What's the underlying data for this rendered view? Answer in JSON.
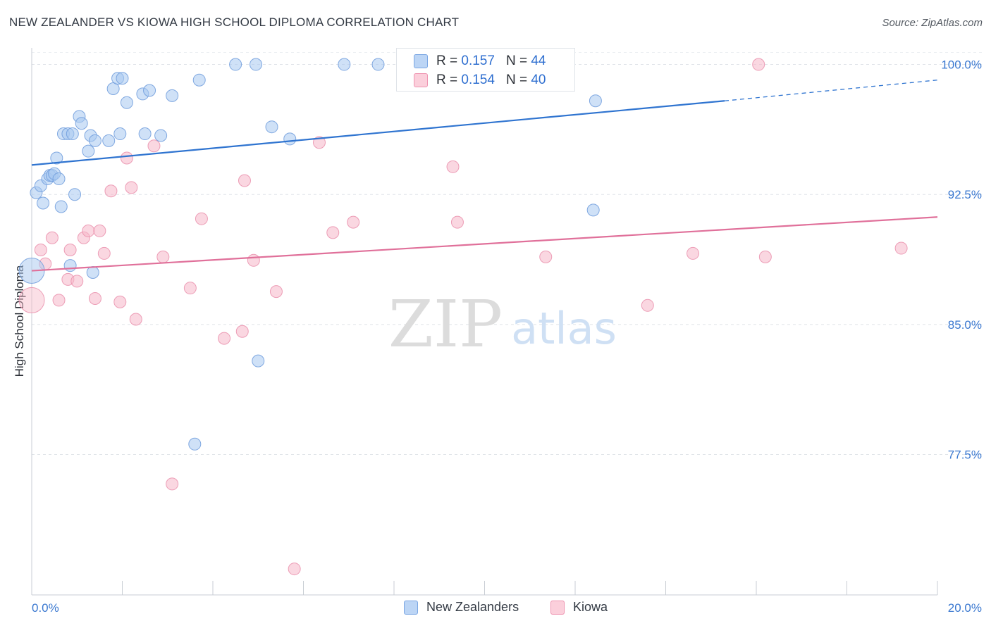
{
  "title": "NEW ZEALANDER VS KIOWA HIGH SCHOOL DIPLOMA CORRELATION CHART",
  "source": "Source: ZipAtlas.com",
  "watermark": {
    "zip": "ZIP",
    "atlas": "atlas"
  },
  "legend": {
    "rows": [
      {
        "r_label": "R =",
        "r_value": "0.157",
        "n_label": "N =",
        "n_value": "44"
      },
      {
        "r_label": "R =",
        "r_value": "0.154",
        "n_label": "N =",
        "n_value": "40"
      }
    ]
  },
  "bottom_legend": [
    "New Zealanders",
    "Kiowa"
  ],
  "chart_data": {
    "type": "scatter",
    "title": "NEW ZEALANDER VS KIOWA HIGH SCHOOL DIPLOMA CORRELATION CHART",
    "xlabel": "",
    "ylabel": "High School Diploma",
    "xlim": [
      0,
      20
    ],
    "ylim": [
      69.4,
      101.2
    ],
    "x_tick_labels": [
      "0.0%",
      "20.0%"
    ],
    "y_ticks": [
      77.5,
      85.0,
      92.5,
      100.0
    ],
    "y_tick_labels": [
      "77.5%",
      "85.0%",
      "92.5%",
      "100.0%"
    ],
    "grid": true,
    "colors": {
      "blue": "#a8c8f0",
      "blue_line": "#2f74d0",
      "pink": "#f6b7c8",
      "pink_line": "#e0709a",
      "tick_text": "#3a78d0"
    },
    "series": [
      {
        "name": "New Zealanders",
        "color": "#a8c8f0",
        "trend": {
          "x": [
            0,
            15.3
          ],
          "y": [
            94.2,
            97.9
          ],
          "dashed_to": [
            20,
            99.1
          ]
        },
        "points": [
          [
            0.1,
            92.6
          ],
          [
            0.2,
            93.0
          ],
          [
            0.25,
            92.0
          ],
          [
            0.35,
            93.4
          ],
          [
            0.4,
            93.6
          ],
          [
            0.45,
            93.6
          ],
          [
            0.5,
            93.7
          ],
          [
            0.55,
            94.6
          ],
          [
            0.6,
            93.4
          ],
          [
            0.65,
            91.8
          ],
          [
            0.7,
            96.0
          ],
          [
            0.8,
            96.0
          ],
          [
            0.85,
            88.4
          ],
          [
            0.9,
            96.0
          ],
          [
            0.95,
            92.5
          ],
          [
            1.05,
            97.0
          ],
          [
            1.1,
            96.6
          ],
          [
            1.25,
            95.0
          ],
          [
            1.3,
            95.9
          ],
          [
            1.35,
            88.0
          ],
          [
            1.4,
            95.6
          ],
          [
            1.7,
            95.6
          ],
          [
            1.8,
            98.6
          ],
          [
            1.9,
            99.2
          ],
          [
            1.95,
            96.0
          ],
          [
            2.0,
            99.2
          ],
          [
            2.1,
            97.8
          ],
          [
            2.45,
            98.3
          ],
          [
            2.5,
            96.0
          ],
          [
            2.6,
            98.5
          ],
          [
            2.85,
            95.9
          ],
          [
            3.1,
            98.2
          ],
          [
            3.7,
            99.1
          ],
          [
            3.6,
            78.1
          ],
          [
            4.5,
            100.0
          ],
          [
            4.95,
            100.0
          ],
          [
            5.0,
            82.9
          ],
          [
            5.3,
            96.4
          ],
          [
            5.7,
            95.7
          ],
          [
            6.9,
            100.0
          ],
          [
            7.65,
            100.0
          ],
          [
            12.4,
            91.6
          ],
          [
            12.45,
            97.9
          ],
          [
            0.0,
            88.1
          ]
        ]
      },
      {
        "name": "Kiowa",
        "color": "#f6b7c8",
        "trend": {
          "x": [
            0,
            20
          ],
          "y": [
            88.1,
            91.2
          ]
        },
        "points": [
          [
            0.2,
            89.3
          ],
          [
            0.3,
            88.5
          ],
          [
            0.45,
            90.0
          ],
          [
            0.6,
            86.4
          ],
          [
            0.8,
            87.6
          ],
          [
            0.85,
            89.3
          ],
          [
            1.0,
            87.5
          ],
          [
            1.15,
            90.0
          ],
          [
            1.25,
            90.4
          ],
          [
            1.4,
            86.5
          ],
          [
            1.5,
            90.4
          ],
          [
            1.6,
            89.1
          ],
          [
            1.75,
            92.7
          ],
          [
            1.95,
            86.3
          ],
          [
            2.1,
            94.6
          ],
          [
            2.2,
            92.9
          ],
          [
            2.3,
            85.3
          ],
          [
            2.7,
            95.3
          ],
          [
            2.9,
            88.9
          ],
          [
            3.1,
            75.8
          ],
          [
            3.5,
            87.1
          ],
          [
            3.75,
            91.1
          ],
          [
            4.25,
            84.2
          ],
          [
            4.65,
            84.6
          ],
          [
            4.7,
            93.3
          ],
          [
            4.9,
            88.7
          ],
          [
            5.4,
            86.9
          ],
          [
            5.8,
            70.9
          ],
          [
            6.35,
            95.5
          ],
          [
            6.65,
            90.3
          ],
          [
            7.1,
            90.9
          ],
          [
            9.3,
            94.1
          ],
          [
            9.4,
            90.9
          ],
          [
            11.35,
            88.9
          ],
          [
            13.6,
            86.1
          ],
          [
            14.6,
            89.1
          ],
          [
            16.05,
            100.0
          ],
          [
            16.2,
            88.9
          ],
          [
            19.2,
            89.4
          ],
          [
            0.0,
            86.4
          ]
        ]
      }
    ]
  }
}
